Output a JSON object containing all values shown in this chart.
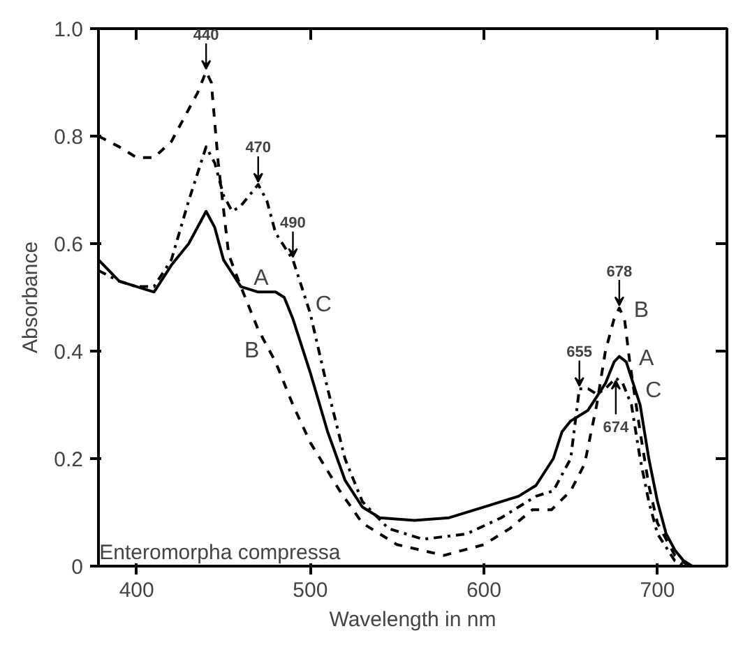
{
  "chart_data": {
    "type": "line",
    "xlabel": "Wavelength in nm",
    "ylabel": "Absorbance",
    "xlim": [
      378,
      740
    ],
    "ylim": [
      0,
      1.0
    ],
    "xticks": [
      400,
      500,
      600,
      700
    ],
    "yticks": [
      {
        "value": 0,
        "label": "0"
      },
      0.2,
      0.4,
      0.6,
      0.8,
      {
        "value": 1.0,
        "label": "1.0"
      }
    ],
    "grid": false,
    "series": [
      {
        "color": "#000000",
        "line_style": "solid",
        "x": [
          378,
          390,
          400,
          410,
          420,
          430,
          440,
          445,
          450,
          460,
          470,
          480,
          485,
          490,
          500,
          510,
          520,
          530,
          540,
          560,
          580,
          600,
          620,
          630,
          640,
          645,
          650,
          660,
          670,
          675,
          678,
          682,
          685,
          690,
          695,
          700,
          705,
          710,
          715,
          720
        ],
        "values": [
          0.57,
          0.53,
          0.52,
          0.51,
          0.56,
          0.6,
          0.66,
          0.63,
          0.57,
          0.52,
          0.51,
          0.51,
          0.5,
          0.46,
          0.36,
          0.25,
          0.16,
          0.11,
          0.09,
          0.085,
          0.09,
          0.11,
          0.13,
          0.15,
          0.2,
          0.25,
          0.27,
          0.29,
          0.34,
          0.38,
          0.39,
          0.38,
          0.35,
          0.3,
          0.2,
          0.12,
          0.06,
          0.03,
          0.01,
          0
        ]
      },
      {
        "color": "#000000",
        "line_style": "dashed",
        "x": [
          378,
          390,
          400,
          410,
          420,
          430,
          435,
          440,
          443,
          447,
          453,
          460,
          470,
          480,
          490,
          500,
          517,
          530,
          550,
          577,
          600,
          615,
          628,
          639,
          650,
          658,
          665,
          670,
          675,
          678,
          681,
          684,
          690,
          695,
          700,
          710,
          718
        ],
        "values": [
          0.8,
          0.78,
          0.76,
          0.76,
          0.79,
          0.85,
          0.88,
          0.92,
          0.9,
          0.75,
          0.58,
          0.52,
          0.44,
          0.38,
          0.3,
          0.23,
          0.14,
          0.08,
          0.04,
          0.02,
          0.04,
          0.07,
          0.105,
          0.105,
          0.14,
          0.19,
          0.3,
          0.4,
          0.46,
          0.48,
          0.46,
          0.38,
          0.25,
          0.15,
          0.08,
          0.02,
          0
        ]
      },
      {
        "color": "#000000",
        "line_style": "dashdot",
        "x": [
          378,
          390,
          400,
          410,
          420,
          430,
          440,
          445,
          450,
          455,
          460,
          465,
          470,
          475,
          480,
          490,
          500,
          510,
          520,
          530,
          545,
          565,
          590,
          610,
          630,
          640,
          650,
          655,
          660,
          665,
          670,
          676,
          680,
          685,
          690,
          695,
          700,
          710,
          716
        ],
        "values": [
          0.55,
          0.53,
          0.52,
          0.52,
          0.57,
          0.68,
          0.78,
          0.75,
          0.69,
          0.66,
          0.67,
          0.69,
          0.71,
          0.68,
          0.62,
          0.57,
          0.47,
          0.33,
          0.2,
          0.12,
          0.07,
          0.05,
          0.06,
          0.09,
          0.13,
          0.14,
          0.2,
          0.33,
          0.33,
          0.32,
          0.33,
          0.35,
          0.34,
          0.3,
          0.2,
          0.12,
          0.06,
          0.01,
          0
        ]
      }
    ],
    "annotations": [
      "Enteromorpha compressa",
      {
        "text": "440",
        "x": 440,
        "y": 0.92
      },
      {
        "text": "470",
        "x": 470,
        "y": 0.71
      },
      {
        "text": "490",
        "x": 490,
        "y": 0.57
      },
      {
        "text": "655",
        "x": 655,
        "y": 0.33
      },
      {
        "text": "678",
        "x": 678,
        "y": 0.48
      },
      {
        "text": "674",
        "x": 676,
        "y": 0.35
      },
      {
        "text": "A",
        "x": 462,
        "y": 0.52
      },
      {
        "text": "B",
        "x": 476,
        "y": 0.4
      },
      {
        "text": "C",
        "x": 498,
        "y": 0.47
      },
      {
        "text": "B",
        "x": 681,
        "y": 0.46
      },
      {
        "text": "A",
        "x": 684,
        "y": 0.37
      },
      {
        "text": "C",
        "x": 688,
        "y": 0.31
      }
    ]
  }
}
